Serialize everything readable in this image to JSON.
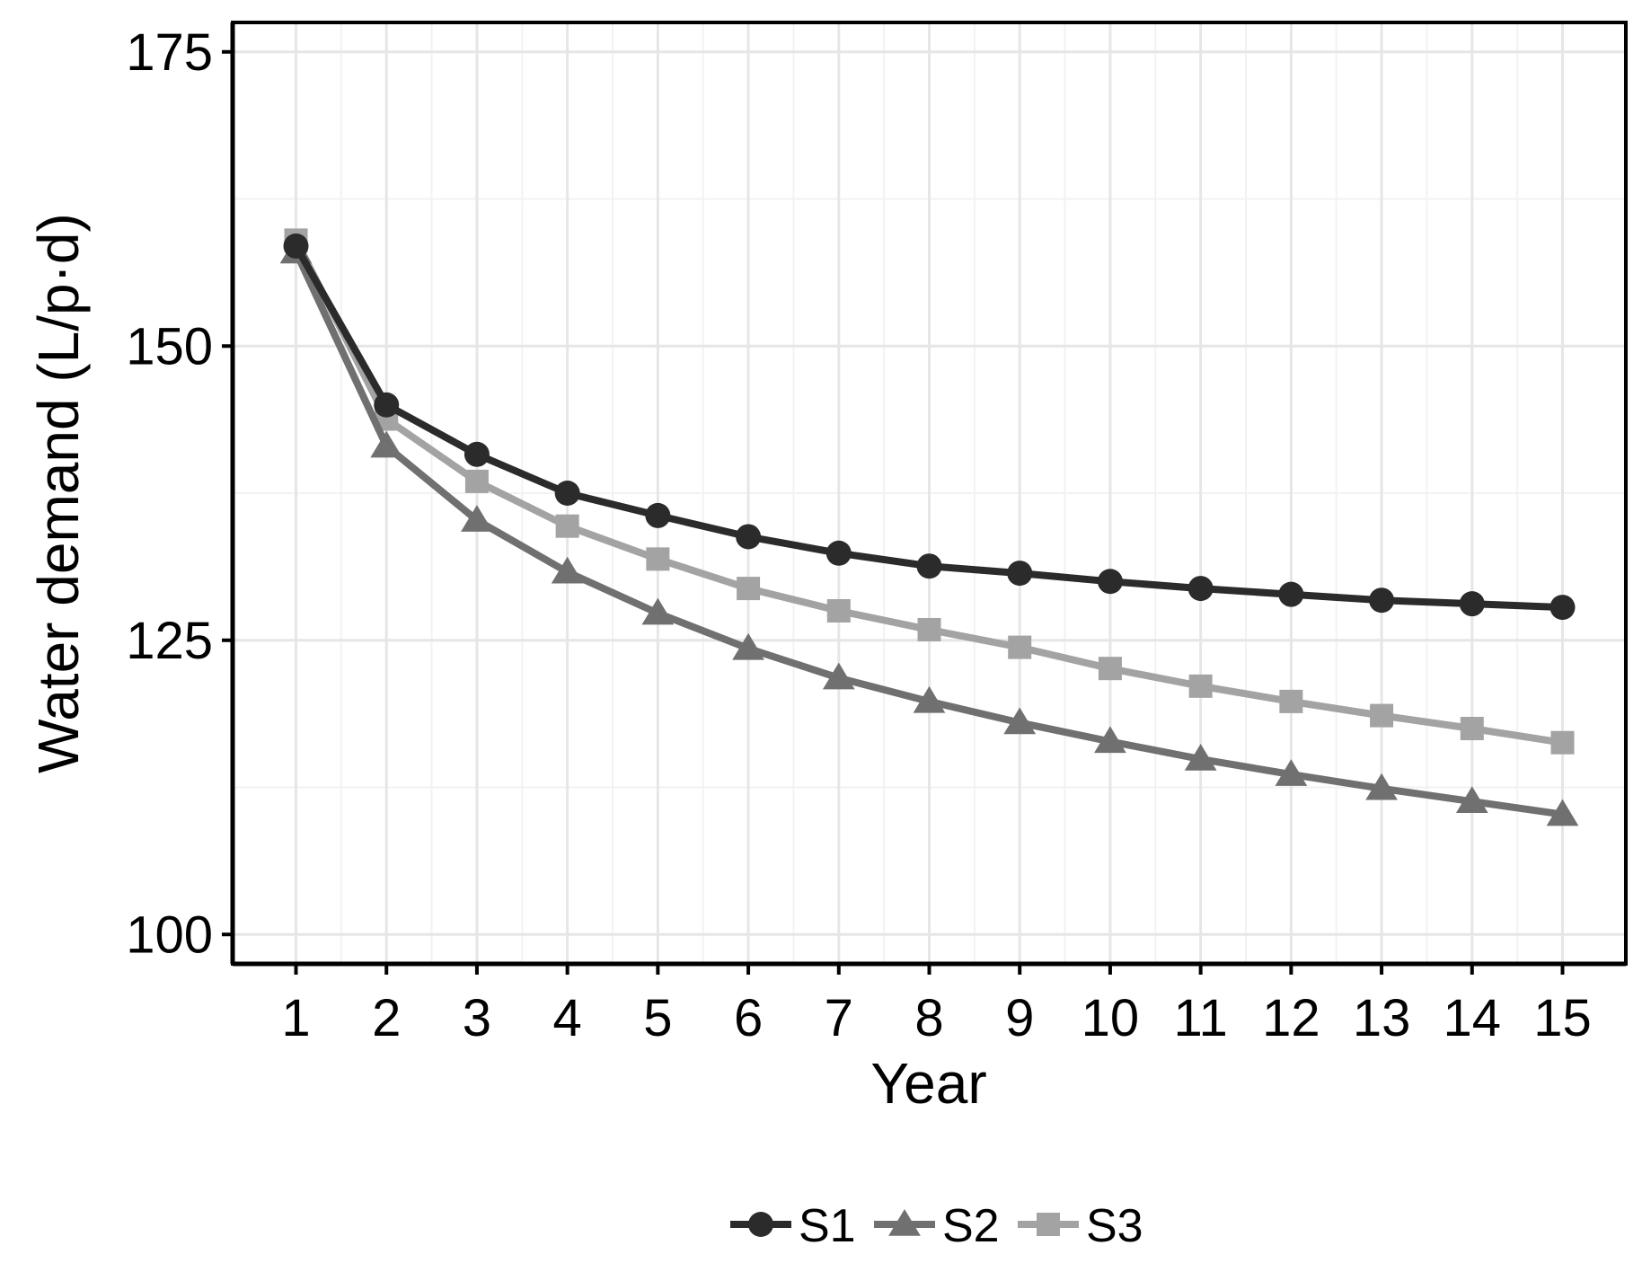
{
  "chart_data": {
    "type": "line",
    "title": "",
    "xlabel": "Year",
    "ylabel": "Water demand (L/p·d)",
    "x": [
      1,
      2,
      3,
      4,
      5,
      6,
      7,
      8,
      9,
      10,
      11,
      12,
      13,
      14,
      15
    ],
    "xlim": [
      0.3,
      15.7
    ],
    "ylim": [
      97.5,
      177.5
    ],
    "y_ticks": [
      100,
      125,
      150,
      175
    ],
    "x_ticks": [
      1,
      2,
      3,
      4,
      5,
      6,
      7,
      8,
      9,
      10,
      11,
      12,
      13,
      14,
      15
    ],
    "grid": true,
    "legend_position": "bottom",
    "series": [
      {
        "name": "S1",
        "marker": "circle",
        "color": "#2b2b2b",
        "values": [
          158.5,
          145.0,
          140.8,
          137.5,
          135.6,
          133.8,
          132.4,
          131.3,
          130.7,
          130.0,
          129.4,
          128.9,
          128.4,
          128.1,
          127.8
        ]
      },
      {
        "name": "S2",
        "marker": "triangle",
        "color": "#707070",
        "values": [
          158.0,
          141.5,
          135.2,
          130.8,
          127.3,
          124.3,
          121.8,
          119.8,
          118.0,
          116.4,
          114.9,
          113.6,
          112.4,
          111.3,
          110.2
        ]
      },
      {
        "name": "S3",
        "marker": "square",
        "color": "#a3a3a3",
        "values": [
          159.0,
          143.8,
          138.5,
          134.7,
          131.9,
          129.4,
          127.5,
          125.9,
          124.4,
          122.6,
          121.1,
          119.8,
          118.6,
          117.5,
          116.3
        ]
      }
    ]
  }
}
